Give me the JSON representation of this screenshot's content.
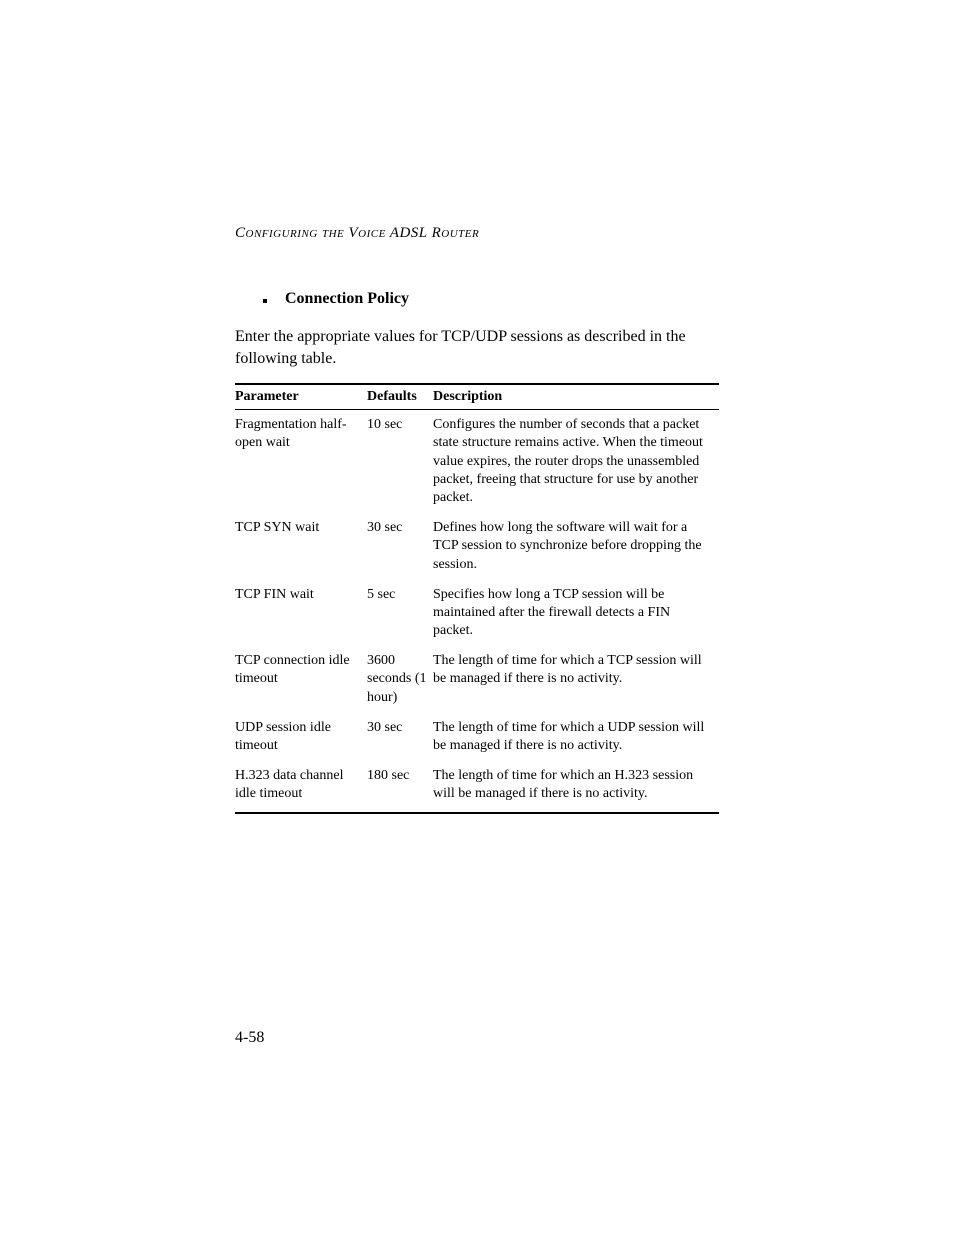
{
  "running_header": "Configuring the Voice ADSL Router",
  "section": {
    "bullet_label": "Connection Policy",
    "intro": "Enter the appropriate values for TCP/UDP sessions as described in the following table."
  },
  "table": {
    "columns": [
      "Parameter",
      "Defaults",
      "Description"
    ],
    "rows": [
      {
        "parameter": "Fragmentation half-open wait",
        "default": "10 sec",
        "description": "Configures the number of seconds that a packet state structure remains active. When the timeout value expires, the router drops the unassembled packet, freeing that structure for use by another packet."
      },
      {
        "parameter": "TCP SYN wait",
        "default": "30 sec",
        "description": "Defines how long the software will wait for a TCP session to synchronize before dropping the session."
      },
      {
        "parameter": "TCP FIN wait",
        "default": "5 sec",
        "description": "Specifies how long a TCP session will be maintained after the firewall detects a FIN packet."
      },
      {
        "parameter": "TCP connection idle timeout",
        "default": "3600 seconds (1 hour)",
        "description": "The length of time for which a TCP session will be managed if there is no activity."
      },
      {
        "parameter": "UDP session idle timeout",
        "default": "30 sec",
        "description": "The length of time for which a UDP session will be managed if there is no activity."
      },
      {
        "parameter": "H.323 data channel idle timeout",
        "default": "180 sec",
        "description": "The length of time for which an H.323 session will be managed if there is no activity."
      }
    ]
  },
  "page_number": "4-58"
}
